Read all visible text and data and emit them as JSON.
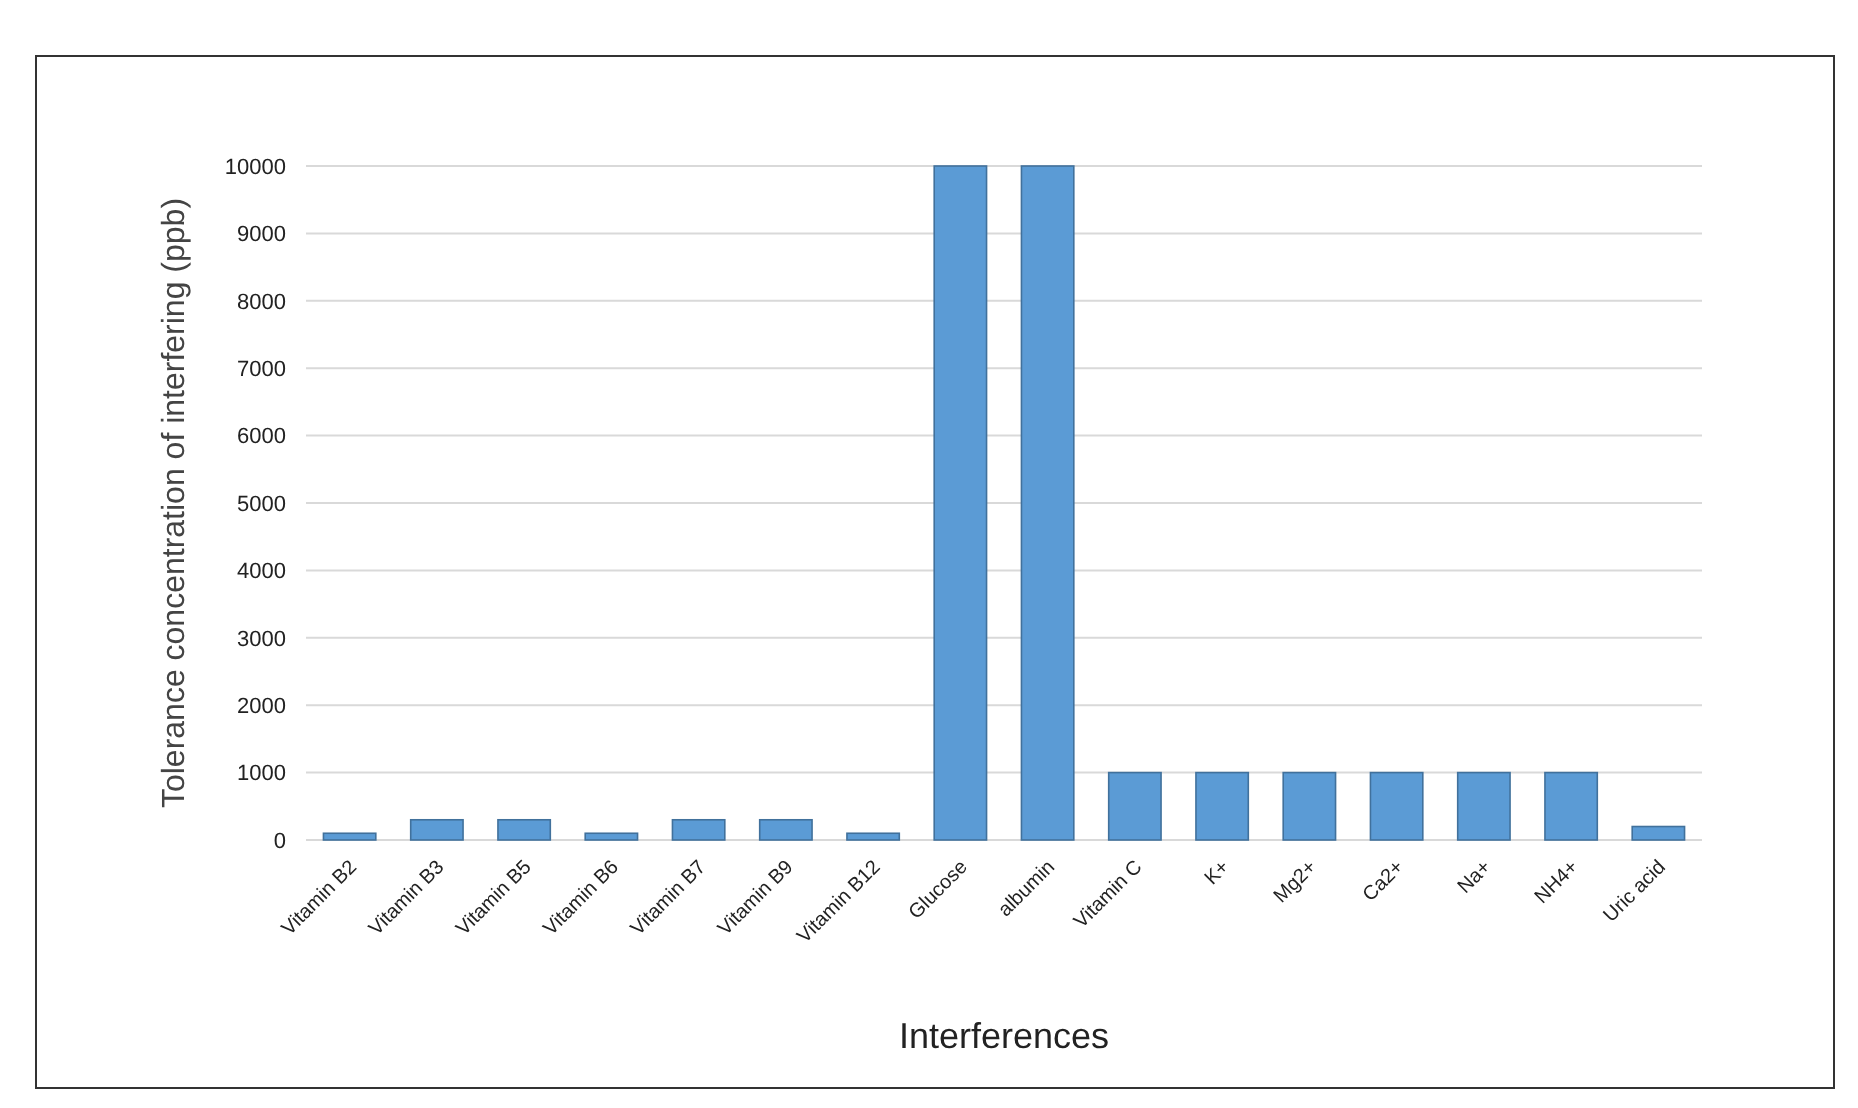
{
  "chart_data": {
    "type": "bar",
    "xlabel": "Interferences",
    "ylabel": "Tolerance concentration of interfering (ppb)",
    "categories": [
      "Vitamin B2",
      "Vitamin B3",
      "Vitamin B5",
      "Vitamin B6",
      "Vitamin B7",
      "Vitamin B9",
      "Vitamin B12",
      "Glucose",
      "albumin",
      "Vitamin C",
      "K+",
      "Mg2+",
      "Ca2+",
      "Na+",
      "NH4+",
      "Uric acid"
    ],
    "values": [
      100,
      300,
      300,
      100,
      300,
      300,
      100,
      10000,
      10000,
      1000,
      1000,
      1000,
      1000,
      1000,
      1000,
      200
    ],
    "color": "#5b9bd5",
    "ylim": [
      0,
      10000
    ],
    "yticks": [
      0,
      1000,
      2000,
      3000,
      4000,
      5000,
      6000,
      7000,
      8000,
      9000,
      10000
    ],
    "grid": "y"
  }
}
